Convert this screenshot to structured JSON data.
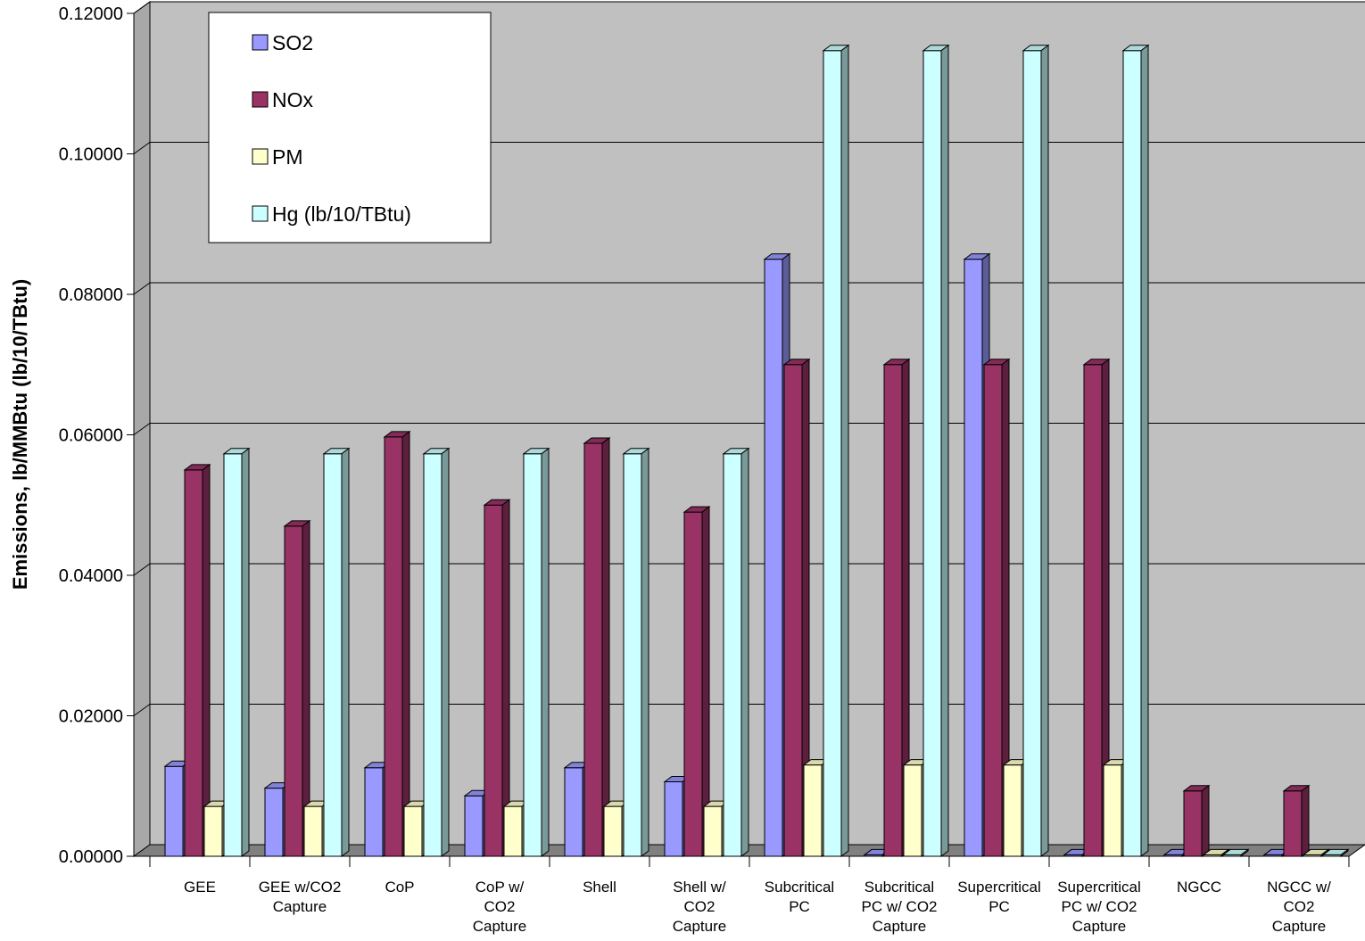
{
  "chart_data": {
    "type": "bar",
    "title": "",
    "xlabel": "",
    "ylabel": "Emissions, lb/MMBtu (lb/10/TBtu)",
    "ylim": [
      0,
      0.12
    ],
    "yticks": [
      "0.00000",
      "0.02000",
      "0.04000",
      "0.06000",
      "0.08000",
      "0.10000",
      "0.12000"
    ],
    "grid": true,
    "legend_position": "top-left",
    "categories": [
      [
        "GEE"
      ],
      [
        "GEE w/CO2",
        "Capture"
      ],
      [
        "CoP"
      ],
      [
        "CoP w/",
        "CO2",
        "Capture"
      ],
      [
        "Shell"
      ],
      [
        "Shell w/",
        "CO2",
        "Capture"
      ],
      [
        "Subcritical",
        "PC"
      ],
      [
        "Subcritical",
        "PC w/ CO2",
        "Capture"
      ],
      [
        "Supercritical",
        "PC"
      ],
      [
        "Supercritical",
        "PC w/ CO2",
        "Capture"
      ],
      [
        "NGCC"
      ],
      [
        "NGCC w/",
        "CO2",
        "Capture"
      ]
    ],
    "series": [
      {
        "name": "SO2",
        "color": "#9999ff",
        "values": [
          0.0128,
          0.0097,
          0.0126,
          0.0086,
          0.0126,
          0.0106,
          0.085,
          0.0002,
          0.085,
          0.0002,
          0.0002,
          0.0002
        ]
      },
      {
        "name": "NOx",
        "color": "#993366",
        "values": [
          0.055,
          0.047,
          0.0597,
          0.05,
          0.0588,
          0.049,
          0.07,
          0.07,
          0.07,
          0.07,
          0.0093,
          0.0093
        ]
      },
      {
        "name": "PM",
        "color": "#ffffcc",
        "values": [
          0.0071,
          0.0071,
          0.0071,
          0.0071,
          0.0071,
          0.0071,
          0.013,
          0.013,
          0.013,
          0.013,
          0.0002,
          0.0002
        ]
      },
      {
        "name": "Hg (lb/10/TBtu)",
        "color": "#ccffff",
        "values": [
          0.0573,
          0.0573,
          0.0573,
          0.0573,
          0.0573,
          0.0573,
          0.1147,
          0.1147,
          0.1147,
          0.1147,
          0.0002,
          0.0002
        ]
      }
    ]
  }
}
